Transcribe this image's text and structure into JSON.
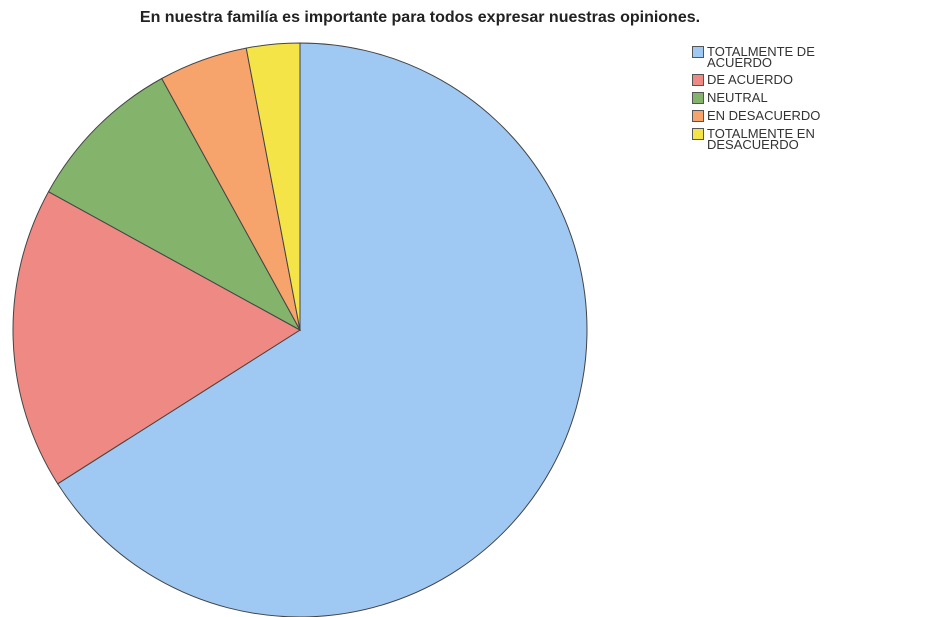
{
  "chart_data": {
    "type": "pie",
    "title": "En nuestra familía es importante para todos expresar nuestras opiniones.",
    "categories": [
      "TOTALMENTE DE ACUERDO",
      "DE ACUERDO",
      "NEUTRAL",
      "EN DESACUERDO",
      "TOTALMENTE EN DESACUERDO"
    ],
    "values": [
      66,
      17,
      9,
      5,
      3
    ],
    "colors": [
      "#9fc8f2",
      "#ef8984",
      "#84b46c",
      "#f6a46c",
      "#f4e448"
    ],
    "legend": "top-right"
  }
}
